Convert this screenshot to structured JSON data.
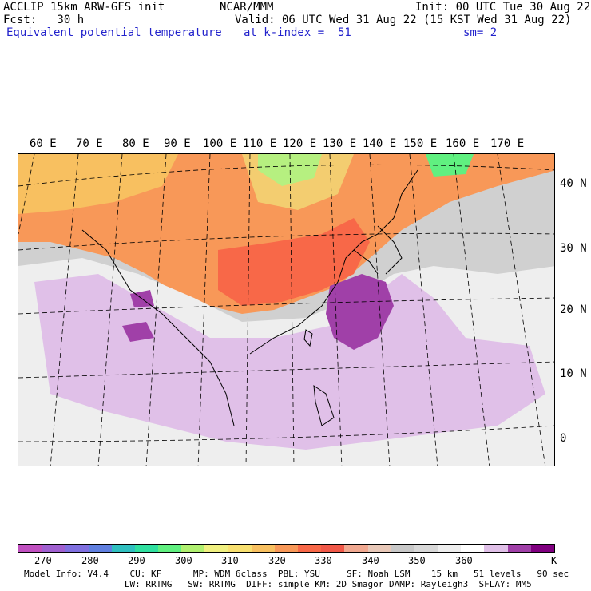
{
  "header": {
    "line1_left": "ACCLIP 15km ARW-GFS init",
    "line1_mid": "NCAR/MMM",
    "line1_right": "Init: 00 UTC Tue 30 Aug 22",
    "line2_left": "Fcst:   30 h",
    "line2_right": "Valid: 06 UTC Wed 31 Aug 22 (15 KST Wed 31 Aug 22)",
    "line3_left": "Equivalent potential temperature",
    "line3_mid": "at k-index =  51",
    "line3_right": "sm= 2"
  },
  "map": {
    "lon_labels": [
      "60 E",
      "70 E",
      "80 E",
      "90 E",
      "100 E",
      "110 E",
      "120 E",
      "130 E",
      "140 E",
      "150 E",
      "160 E",
      "170 E"
    ],
    "lat_labels": [
      "40 N",
      "30 N",
      "20 N",
      "10 N",
      "0"
    ]
  },
  "colorbar": {
    "colors": [
      "#c050c0",
      "#a060d0",
      "#8070e0",
      "#6080e0",
      "#30c0c0",
      "#30e0a0",
      "#60f080",
      "#b0f070",
      "#f0f080",
      "#f8e070",
      "#f8c060",
      "#f89858",
      "#f86848",
      "#f05848",
      "#f0a890",
      "#e8c8b8",
      "#c8c8c8",
      "#d8d8d8",
      "#eeeeee",
      "#ffffff",
      "#e0c0e8",
      "#a040a8",
      "#800080"
    ],
    "ticks": [
      "270",
      "280",
      "290",
      "300",
      "310",
      "320",
      "330",
      "340",
      "350",
      "360",
      "K"
    ],
    "unit": "K"
  },
  "footer": {
    "line1": "Model Info: V4.4    CU: KF      MP: WDM 6class  PBL: YSU     SF: Noah LSM    15 km   51 levels   90 sec",
    "line2": "                   LW: RRTMG   SW: RRTMG  DIFF: simple KM: 2D Smagor DAMP: Rayleigh3  SFLAY: MM5"
  }
}
